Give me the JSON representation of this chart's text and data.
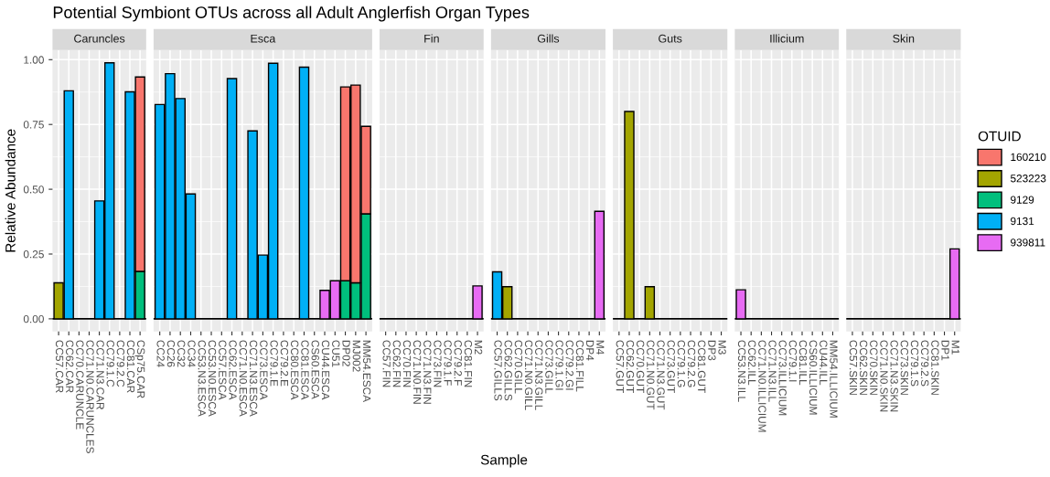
{
  "chart_data": [
    {
      "type": "bar",
      "title": "Caruncles",
      "annotations": [
        "Potential Symbiont OTUs across all Adult Anglerfish Organ Types"
      ],
      "ylabel": "Relative Abundance",
      "stacked": true,
      "grid": true,
      "legend": "right",
      "legend_title": "OTUID",
      "ref_lines": [
        {
          "axis": "y",
          "value": 0,
          "color": "#000000"
        }
      ],
      "categories": [
        "CC57.CAR",
        "CC62.CAR",
        "CC70.CARUNCLE",
        "CC71.N0.CARUNCLES",
        "CC71.N3.CAR",
        "CC79.1.C",
        "CC79.2.C",
        "CC81.CAR",
        "CSp75.CAR"
      ],
      "ylim": [
        -0.049,
        1.037
      ],
      "yticks": [
        {
          "value": 0,
          "label": "0.00"
        },
        {
          "value": 0.25,
          "label": "0.25"
        },
        {
          "value": 0.5,
          "label": "0.50"
        },
        {
          "value": 0.75,
          "label": "0.75"
        },
        {
          "value": 1,
          "label": "1.00"
        }
      ],
      "series": [
        {
          "name": "939811",
          "color": "#e76bf3",
          "values": [
            0,
            0,
            0,
            0,
            0,
            0,
            0,
            0,
            0
          ]
        },
        {
          "name": "9131",
          "color": "#00b0f6",
          "values": [
            0,
            0.88,
            0,
            0,
            0.455,
            0.988,
            0,
            0.876,
            0
          ]
        },
        {
          "name": "9129",
          "color": "#00bf7d",
          "values": [
            0,
            0,
            0,
            0,
            0,
            0,
            0,
            0,
            0.183
          ]
        },
        {
          "name": "523223",
          "color": "#a3a500",
          "values": [
            0.139,
            0,
            0,
            0,
            0,
            0,
            0,
            0,
            0
          ]
        },
        {
          "name": "160210",
          "color": "#f8766d",
          "values": [
            0,
            0,
            0,
            0,
            0,
            0,
            0,
            0,
            0.75
          ]
        }
      ]
    },
    {
      "type": "bar",
      "title": "Esca",
      "stacked": true,
      "grid": true,
      "ref_lines": [
        {
          "axis": "y",
          "value": 0,
          "color": "#000000"
        }
      ],
      "tick_labels": "x",
      "categories": [
        "CC24",
        "CC26",
        "CC32",
        "CC34",
        "CC53.N3.ESCA",
        "CC53.N0.ESCA",
        "CC57.ESCA",
        "CC62.ESCA",
        "CC71.N0.ESCA",
        "CC71.N3.ESCA",
        "CC73.ESCA",
        "CC79.1.E",
        "CC79.2.E",
        "CC80.ESCA",
        "CC81.ESCA",
        "CS60.ESCA",
        "CU44.ESCA",
        "CU51",
        "DP02",
        "MJ002",
        "MM54.ESCA"
      ],
      "ylim": [
        -0.049,
        1.037
      ],
      "yticks": [
        {
          "value": 0,
          "label": null
        },
        {
          "value": 0.25,
          "label": null
        },
        {
          "value": 0.5,
          "label": null
        },
        {
          "value": 0.75,
          "label": null
        },
        {
          "value": 1,
          "label": null
        }
      ],
      "series": [
        {
          "color": "#e76bf3",
          "values": [
            0,
            0,
            0,
            0,
            0,
            0,
            0,
            0,
            0,
            0,
            0,
            0,
            0,
            0,
            0,
            0,
            0.11,
            0.147,
            0,
            0,
            0
          ]
        },
        {
          "color": "#00b0f6",
          "values": [
            0.827,
            0.946,
            0.85,
            0.482,
            0,
            0,
            0,
            0.927,
            0,
            0.725,
            0.246,
            0.986,
            0,
            0,
            0.971,
            0,
            0,
            0,
            0,
            0,
            0
          ]
        },
        {
          "color": "#00bf7d",
          "values": [
            0,
            0,
            0,
            0,
            0,
            0,
            0,
            0,
            0,
            0,
            0,
            0,
            0,
            0,
            0,
            0,
            0,
            0,
            0.147,
            0.139,
            0.405
          ]
        },
        {
          "color": "#a3a500",
          "values": [
            0,
            0,
            0,
            0,
            0,
            0,
            0,
            0,
            0,
            0,
            0,
            0,
            0,
            0,
            0,
            0,
            0,
            0,
            0,
            0,
            0
          ]
        },
        {
          "color": "#f8766d",
          "values": [
            0,
            0,
            0,
            0,
            0,
            0,
            0,
            0,
            0,
            0,
            0,
            0,
            0,
            0,
            0,
            0,
            0,
            0,
            0.748,
            0.763,
            0.338
          ]
        }
      ]
    },
    {
      "type": "bar",
      "title": "Fin",
      "stacked": true,
      "grid": true,
      "ref_lines": [
        {
          "axis": "y",
          "value": 0,
          "color": "#000000"
        }
      ],
      "tick_labels": "x",
      "categories": [
        "CC57.FIN",
        "CC62.FIN",
        "CC70.FIN",
        "CC71.N0.FIN",
        "CC71.N3.FIN",
        "CC73.FIN",
        "CC79.1.F",
        "CC79.2.F",
        "CC81.FIN",
        "M2"
      ],
      "ylim": [
        -0.049,
        1.037
      ],
      "yticks": [
        {
          "value": 0,
          "label": null
        },
        {
          "value": 0.25,
          "label": null
        },
        {
          "value": 0.5,
          "label": null
        },
        {
          "value": 0.75,
          "label": null
        },
        {
          "value": 1,
          "label": null
        }
      ],
      "series": [
        {
          "color": "#e76bf3",
          "values": [
            0,
            0,
            0,
            0,
            0,
            0,
            0,
            0,
            0,
            0.127
          ]
        },
        {
          "color": "#00b0f6",
          "values": [
            0,
            0,
            0,
            0,
            0,
            0,
            0,
            0,
            0,
            0
          ]
        },
        {
          "color": "#00bf7d",
          "values": [
            0,
            0,
            0,
            0,
            0,
            0,
            0,
            0,
            0,
            0
          ]
        },
        {
          "color": "#a3a500",
          "values": [
            0,
            0,
            0,
            0,
            0,
            0,
            0,
            0,
            0,
            0
          ]
        },
        {
          "color": "#f8766d",
          "values": [
            0,
            0,
            0,
            0,
            0,
            0,
            0,
            0,
            0,
            0
          ]
        }
      ]
    },
    {
      "type": "bar",
      "title": "Gills",
      "xlabel": "Sample",
      "stacked": true,
      "grid": true,
      "ref_lines": [
        {
          "axis": "y",
          "value": 0,
          "color": "#000000"
        }
      ],
      "tick_labels": "x",
      "categories": [
        "CC57.GILLS",
        "CC62.GILLS",
        "CC70.GILL",
        "CC71.N0.GILL",
        "CC71.N3.GILL",
        "CC73.GILL",
        "CC79.1.GI",
        "CC79.2.GI",
        "CC81.FILL",
        "DP4",
        "M4"
      ],
      "ylim": [
        -0.049,
        1.037
      ],
      "yticks": [
        {
          "value": 0,
          "label": null
        },
        {
          "value": 0.25,
          "label": null
        },
        {
          "value": 0.5,
          "label": null
        },
        {
          "value": 0.75,
          "label": null
        },
        {
          "value": 1,
          "label": null
        }
      ],
      "series": [
        {
          "color": "#e76bf3",
          "values": [
            0,
            0,
            0,
            0,
            0,
            0,
            0,
            0,
            0,
            0,
            0.415
          ]
        },
        {
          "color": "#00b0f6",
          "values": [
            0.181,
            0,
            0,
            0,
            0,
            0,
            0,
            0,
            0,
            0,
            0
          ]
        },
        {
          "color": "#00bf7d",
          "values": [
            0,
            0,
            0,
            0,
            0,
            0,
            0,
            0,
            0,
            0,
            0
          ]
        },
        {
          "color": "#a3a500",
          "values": [
            0,
            0.124,
            0,
            0,
            0,
            0,
            0,
            0,
            0,
            0,
            0
          ]
        },
        {
          "color": "#f8766d",
          "values": [
            0,
            0,
            0,
            0,
            0,
            0,
            0,
            0,
            0,
            0,
            0
          ]
        }
      ]
    },
    {
      "type": "bar",
      "title": "Guts",
      "stacked": true,
      "grid": true,
      "ref_lines": [
        {
          "axis": "y",
          "value": 0,
          "color": "#000000"
        }
      ],
      "tick_labels": "x",
      "categories": [
        "CC57.GUT",
        "CC62.GUT",
        "CC70.GUT",
        "CC71.N0.GUT",
        "CC71.N3.GUT",
        "CC73.GUT",
        "CC79.1.G",
        "CC79.2.G",
        "CC81.GUT",
        "DP3",
        "M3"
      ],
      "ylim": [
        -0.049,
        1.037
      ],
      "yticks": [
        {
          "value": 0,
          "label": null
        },
        {
          "value": 0.25,
          "label": null
        },
        {
          "value": 0.5,
          "label": null
        },
        {
          "value": 0.75,
          "label": null
        },
        {
          "value": 1,
          "label": null
        }
      ],
      "series": [
        {
          "color": "#e76bf3",
          "values": [
            0,
            0,
            0,
            0,
            0,
            0,
            0,
            0,
            0,
            0,
            0
          ]
        },
        {
          "color": "#00b0f6",
          "values": [
            0,
            0,
            0,
            0,
            0,
            0,
            0,
            0,
            0,
            0,
            0
          ]
        },
        {
          "color": "#00bf7d",
          "values": [
            0,
            0,
            0,
            0,
            0,
            0,
            0,
            0,
            0,
            0,
            0
          ]
        },
        {
          "color": "#a3a500",
          "values": [
            0,
            0.8,
            0,
            0.124,
            0,
            0,
            0,
            0,
            0,
            0,
            0
          ]
        },
        {
          "color": "#f8766d",
          "values": [
            0,
            0,
            0,
            0,
            0,
            0,
            0,
            0,
            0,
            0,
            0
          ]
        }
      ]
    },
    {
      "type": "bar",
      "title": "Illicium",
      "stacked": true,
      "grid": true,
      "ref_lines": [
        {
          "axis": "y",
          "value": 0,
          "color": "#000000"
        }
      ],
      "tick_labels": "x",
      "categories": [
        "CC53.N3.ILL",
        "CC62.ILL",
        "CC71.N0.ILLICIUM",
        "CC71.N3.ILL",
        "CC73.ILLICIUM",
        "CC79.1.I",
        "CC81.ILL",
        "CS60.ILLICIUM",
        "CU44.ILL",
        "MM54.ILLICIUM"
      ],
      "ylim": [
        -0.049,
        1.037
      ],
      "yticks": [
        {
          "value": 0,
          "label": null
        },
        {
          "value": 0.25,
          "label": null
        },
        {
          "value": 0.5,
          "label": null
        },
        {
          "value": 0.75,
          "label": null
        },
        {
          "value": 1,
          "label": null
        }
      ],
      "series": [
        {
          "color": "#e76bf3",
          "values": [
            0.112,
            0,
            0,
            0,
            0,
            0,
            0,
            0,
            0,
            0
          ]
        },
        {
          "color": "#00b0f6",
          "values": [
            0,
            0,
            0,
            0,
            0,
            0,
            0,
            0,
            0,
            0
          ]
        },
        {
          "color": "#00bf7d",
          "values": [
            0,
            0,
            0,
            0,
            0,
            0,
            0,
            0,
            0,
            0
          ]
        },
        {
          "color": "#a3a500",
          "values": [
            0,
            0,
            0,
            0,
            0,
            0,
            0,
            0,
            0,
            0
          ]
        },
        {
          "color": "#f8766d",
          "values": [
            0,
            0,
            0,
            0,
            0,
            0,
            0,
            0,
            0,
            0
          ]
        }
      ]
    },
    {
      "type": "bar",
      "title": "Skin",
      "stacked": true,
      "grid": true,
      "ref_lines": [
        {
          "axis": "y",
          "value": 0,
          "color": "#000000"
        }
      ],
      "tick_labels": "x",
      "categories": [
        "CC57.SKIN",
        "CC62.SKIN",
        "CC70.SKIN",
        "CC71.N0.SKIN",
        "CC71.N3.SKIN",
        "CC73.SKIN",
        "CC79.1.S",
        "CC79.2.S",
        "CC81.SKIN",
        "DP1",
        "M1"
      ],
      "ylim": [
        -0.049,
        1.037
      ],
      "yticks": [
        {
          "value": 0,
          "label": null
        },
        {
          "value": 0.25,
          "label": null
        },
        {
          "value": 0.5,
          "label": null
        },
        {
          "value": 0.75,
          "label": null
        },
        {
          "value": 1,
          "label": null
        }
      ],
      "series": [
        {
          "color": "#e76bf3",
          "values": [
            0,
            0,
            0,
            0,
            0,
            0,
            0,
            0,
            0,
            0,
            0.27
          ]
        },
        {
          "color": "#00b0f6",
          "values": [
            0,
            0,
            0,
            0,
            0,
            0,
            0,
            0,
            0,
            0,
            0
          ]
        },
        {
          "color": "#00bf7d",
          "values": [
            0,
            0,
            0,
            0,
            0,
            0,
            0,
            0,
            0,
            0,
            0
          ]
        },
        {
          "color": "#a3a500",
          "values": [
            0,
            0,
            0,
            0,
            0,
            0,
            0,
            0,
            0,
            0,
            0
          ]
        },
        {
          "color": "#f8766d",
          "values": [
            0,
            0,
            0,
            0,
            0,
            0,
            0,
            0,
            0,
            0,
            0
          ]
        }
      ]
    }
  ]
}
